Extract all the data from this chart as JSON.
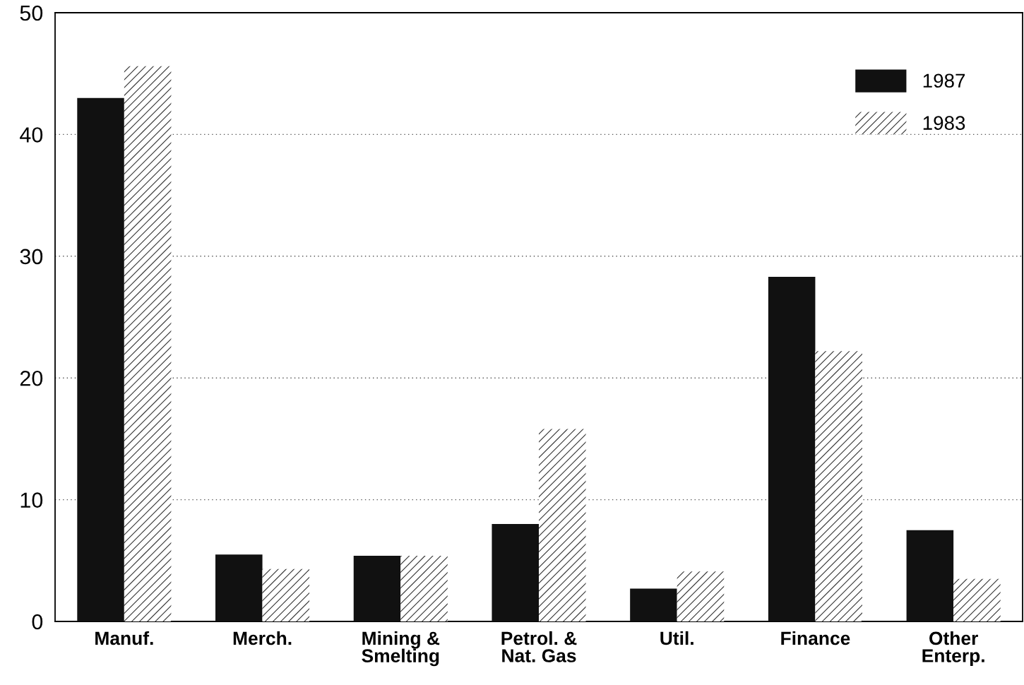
{
  "chart_data": {
    "type": "bar",
    "categories": [
      "Manuf.",
      "Merch.",
      "Mining &\nSmelting",
      "Petrol. &\nNat. Gas",
      "Util.",
      "Finance",
      "Other\nEnterp."
    ],
    "series": [
      {
        "name": "1987",
        "color": "#111111",
        "values": [
          43.0,
          5.5,
          5.4,
          8.0,
          2.7,
          28.3,
          7.5
        ]
      },
      {
        "name": "1983",
        "color": "#ffffff",
        "values": [
          45.6,
          4.3,
          5.4,
          15.8,
          4.1,
          22.2,
          3.5
        ]
      }
    ],
    "ylim": [
      0,
      50
    ],
    "yticks": [
      0,
      10,
      20,
      30,
      40,
      50
    ],
    "grid": "y",
    "legend": "top right"
  }
}
